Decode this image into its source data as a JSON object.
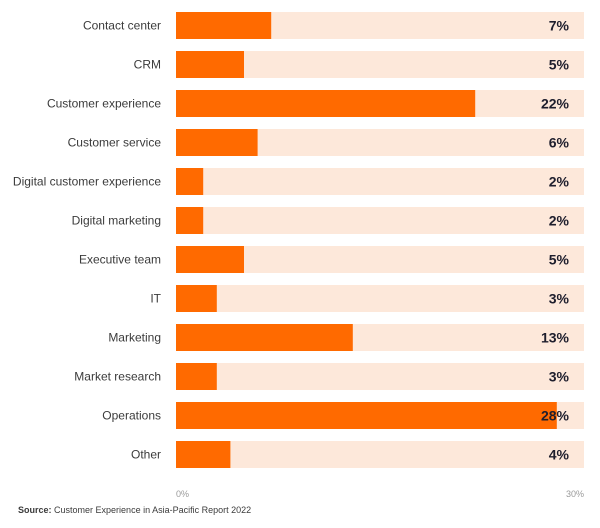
{
  "colors": {
    "bar": "#ff6a00",
    "track": "#fde8da"
  },
  "chart_data": {
    "type": "bar",
    "orientation": "horizontal",
    "categories": [
      "Contact center",
      "CRM",
      "Customer experience",
      "Customer service",
      "Digital customer experience",
      "Digital marketing",
      "Executive team",
      "IT",
      "Marketing",
      "Market research",
      "Operations",
      "Other"
    ],
    "values": [
      7,
      5,
      22,
      6,
      2,
      2,
      5,
      3,
      13,
      3,
      28,
      4
    ],
    "value_labels": [
      "7%",
      "5%",
      "22%",
      "6%",
      "2%",
      "2%",
      "5%",
      "3%",
      "13%",
      "3%",
      "28%",
      "4%"
    ],
    "xlim": [
      0,
      30
    ],
    "x_ticks": [
      "0%",
      "30%"
    ],
    "unit": "%",
    "grid": false,
    "legend": "none"
  },
  "source": {
    "label": "Source:",
    "text": "Customer Experience in Asia-Pacific Report 2022"
  }
}
